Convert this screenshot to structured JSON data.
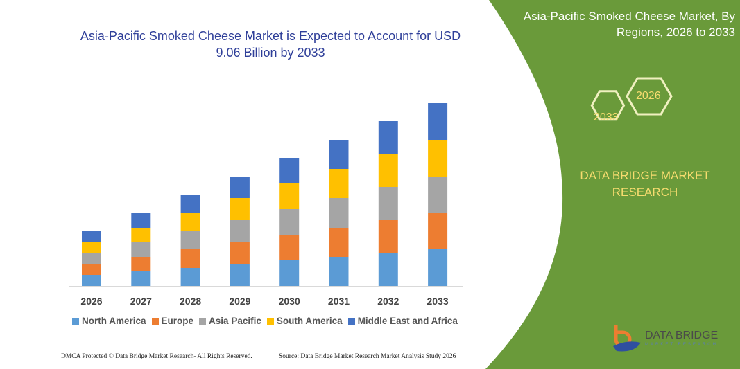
{
  "header": {
    "title": "Asia-Pacific Smoked Cheese Market is Expected to Account for USD 9.06 Billion by 2033"
  },
  "side_panel": {
    "title": "Asia-Pacific Smoked Cheese Market, By Regions, 2026 to 2033",
    "hex_start": "2026",
    "hex_end": "2033",
    "brand": "DATA BRIDGE MARKET RESEARCH",
    "logo_text": "DATA BRIDGE",
    "logo_sub": "MARKET RESEARCH",
    "panel_color": "#6a9a3a"
  },
  "footer": {
    "left": "DMCA Protected © Data Bridge Market Research-  All Rights Reserved.",
    "right": "Source: Data Bridge Market Research  Market Analysis Study 2026"
  },
  "chart_data": {
    "type": "bar",
    "stacked": true,
    "title": "",
    "categories": [
      "2026",
      "2027",
      "2028",
      "2029",
      "2030",
      "2031",
      "2032",
      "2033"
    ],
    "series": [
      {
        "name": "North America",
        "color": "#5b9bd5",
        "values": [
          16,
          21,
          26,
          32,
          37,
          42,
          47,
          53
        ]
      },
      {
        "name": "Europe",
        "color": "#ed7d31",
        "values": [
          16,
          21,
          27,
          31,
          37,
          42,
          48,
          53
        ]
      },
      {
        "name": "Asia Pacific",
        "color": "#a5a5a5",
        "values": [
          15,
          21,
          26,
          32,
          37,
          43,
          48,
          52
        ]
      },
      {
        "name": "South America",
        "color": "#ffc000",
        "values": [
          16,
          21,
          27,
          32,
          37,
          42,
          47,
          53
        ]
      },
      {
        "name": "Middle East and Africa",
        "color": "#4472c4",
        "values": [
          16,
          22,
          26,
          31,
          37,
          42,
          48,
          53
        ]
      }
    ],
    "value_note": "relative (no axis printed)",
    "legend_position": "bottom",
    "grid": false
  }
}
